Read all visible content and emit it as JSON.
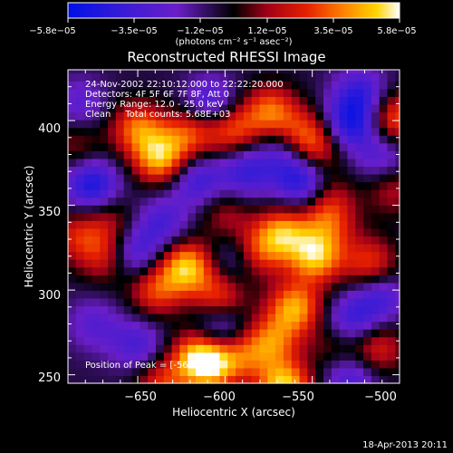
{
  "chart_data": {
    "type": "heatmap",
    "title": "Reconstructed RHESSI Image",
    "xlabel": "Heliocentric X (arcsec)",
    "ylabel": "Heliocentric Y (arcsec)",
    "xlim": [
      -690,
      -500
    ],
    "ylim": [
      245,
      430
    ],
    "x_ticks": [
      -650,
      -600,
      -550,
      -500
    ],
    "x_tick_labels": [
      "−650",
      "−600",
      "−550",
      "−500"
    ],
    "y_ticks": [
      250,
      300,
      350,
      400
    ],
    "y_tick_labels": [
      "250",
      "300",
      "350",
      "400"
    ],
    "colorbar": {
      "min": -5.8e-05,
      "max": 5.8e-05,
      "tick_labels": [
        "−5.8e−05",
        "−3.5e−05",
        "−1.2e−05",
        "1.2e−05",
        "3.5e−05",
        "5.8e−05"
      ],
      "units_label": "(photons cm⁻² s⁻¹ asec⁻²)"
    },
    "annotations": [
      "24-Nov-2002 22:10:12.000 to 22:22:20.000",
      "Detectors: 4F 5F 6F 7F 8F, Att 0",
      "Energy Range: 12.0 - 25.0 keV",
      "Clean     Total counts: 5.68E+03"
    ],
    "peak_label": "Position of Peak = [-566,243]",
    "peak": [
      -566,
      243
    ],
    "blobs": [
      {
        "x": -636,
        "y": 245,
        "v": 0.55
      },
      {
        "x": -608,
        "y": 256,
        "v": 0.8
      },
      {
        "x": -616,
        "y": 262,
        "v": 0.7
      },
      {
        "x": -590,
        "y": 262,
        "v": 0.5
      },
      {
        "x": -566,
        "y": 243,
        "v": 1.0
      },
      {
        "x": -573,
        "y": 270,
        "v": 0.65
      },
      {
        "x": -535,
        "y": 268,
        "v": 0.4
      },
      {
        "x": -513,
        "y": 266,
        "v": 0.55
      },
      {
        "x": -560,
        "y": 290,
        "v": 0.85
      },
      {
        "x": -640,
        "y": 300,
        "v": 0.6
      },
      {
        "x": -622,
        "y": 314,
        "v": 0.95
      },
      {
        "x": -603,
        "y": 296,
        "v": 0.6
      },
      {
        "x": -582,
        "y": 322,
        "v": 0.6
      },
      {
        "x": -548,
        "y": 320,
        "v": 0.9
      },
      {
        "x": -567,
        "y": 334,
        "v": 0.8
      },
      {
        "x": -540,
        "y": 340,
        "v": 0.5
      },
      {
        "x": -517,
        "y": 316,
        "v": 0.6
      },
      {
        "x": -685,
        "y": 332,
        "v": 0.45
      },
      {
        "x": -668,
        "y": 320,
        "v": 0.5
      },
      {
        "x": -666,
        "y": 342,
        "v": 0.35
      },
      {
        "x": -637,
        "y": 378,
        "v": 0.9
      },
      {
        "x": -650,
        "y": 396,
        "v": 0.7
      },
      {
        "x": -620,
        "y": 393,
        "v": 0.6
      },
      {
        "x": -596,
        "y": 395,
        "v": 0.65
      },
      {
        "x": -574,
        "y": 406,
        "v": 0.7
      },
      {
        "x": -556,
        "y": 392,
        "v": 0.55
      },
      {
        "x": -548,
        "y": 383,
        "v": 0.5
      },
      {
        "x": -503,
        "y": 402,
        "v": 0.7
      },
      {
        "x": -504,
        "y": 360,
        "v": 0.4
      },
      {
        "x": -600,
        "y": 345,
        "v": 0.35
      },
      {
        "x": -542,
        "y": 356,
        "v": 0.4
      },
      {
        "x": -685,
        "y": 386,
        "v": 0.3
      },
      {
        "x": -676,
        "y": 362,
        "v": -0.75
      },
      {
        "x": -683,
        "y": 410,
        "v": -0.35
      },
      {
        "x": -652,
        "y": 322,
        "v": -0.55
      },
      {
        "x": -636,
        "y": 340,
        "v": -0.45
      },
      {
        "x": -616,
        "y": 365,
        "v": -0.55
      },
      {
        "x": -588,
        "y": 370,
        "v": -0.55
      },
      {
        "x": -555,
        "y": 364,
        "v": -0.75
      },
      {
        "x": -565,
        "y": 382,
        "v": -0.45
      },
      {
        "x": -528,
        "y": 398,
        "v": -0.7
      },
      {
        "x": -522,
        "y": 416,
        "v": -0.55
      },
      {
        "x": -510,
        "y": 378,
        "v": -0.4
      },
      {
        "x": -608,
        "y": 410,
        "v": -0.55
      },
      {
        "x": -594,
        "y": 318,
        "v": -0.4
      },
      {
        "x": -528,
        "y": 280,
        "v": -0.6
      },
      {
        "x": -512,
        "y": 296,
        "v": -0.5
      },
      {
        "x": -603,
        "y": 277,
        "v": -0.55
      },
      {
        "x": -650,
        "y": 268,
        "v": -0.45
      },
      {
        "x": -528,
        "y": 250,
        "v": -0.5
      },
      {
        "x": -675,
        "y": 280,
        "v": -0.35
      }
    ]
  },
  "footer": {
    "date": "18-Apr-2013 20:11"
  }
}
